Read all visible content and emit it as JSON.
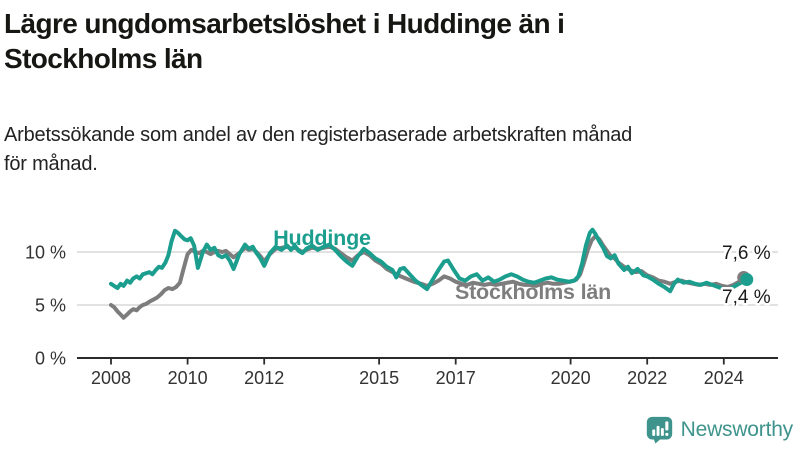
{
  "title_lines": [
    "Lägre ungdomsarbetslöshet i Huddinge än i",
    "Stockholms län"
  ],
  "subtitle_lines": [
    "Arbetssökande som andel av den registerbaserade arbetskraften månad",
    "för månad."
  ],
  "colors": {
    "huddinge": "#1b9e8e",
    "stockholm": "#7d7d7d",
    "grid": "#d9d9d9",
    "axis": "#2b2b2b",
    "text": "#161613",
    "logo": "#3e948c"
  },
  "logo": {
    "text": "Newsworthy",
    "icon": "newsworthy-bar-chart-bubble-icon"
  },
  "chart_data": {
    "type": "line",
    "title": "",
    "xlabel": "",
    "ylabel": "",
    "unit": "%",
    "grid": "horizontal",
    "legend_position": "inline-labels",
    "xlim": [
      2007.1,
      2025.4
    ],
    "ylim": [
      0,
      13.5
    ],
    "x_ticks": [
      2008,
      2010,
      2012,
      2015,
      2017,
      2020,
      2022,
      2024
    ],
    "y_ticks": [
      {
        "value": 0,
        "label": "0 %"
      },
      {
        "value": 5,
        "label": "5 %"
      },
      {
        "value": 10,
        "label": "10 %"
      }
    ],
    "series": [
      {
        "name": "Stockholms län",
        "color": "#7d7d7d",
        "end_label": "7,6 %",
        "end_value": 7.6,
        "points": [
          [
            2008.0,
            5.0
          ],
          [
            2008.08,
            4.8
          ],
          [
            2008.17,
            4.4
          ],
          [
            2008.25,
            4.1
          ],
          [
            2008.33,
            3.8
          ],
          [
            2008.42,
            4.1
          ],
          [
            2008.5,
            4.4
          ],
          [
            2008.58,
            4.6
          ],
          [
            2008.67,
            4.5
          ],
          [
            2008.75,
            4.8
          ],
          [
            2008.83,
            5.0
          ],
          [
            2008.92,
            5.1
          ],
          [
            2009.0,
            5.3
          ],
          [
            2009.1,
            5.5
          ],
          [
            2009.2,
            5.7
          ],
          [
            2009.3,
            6.0
          ],
          [
            2009.4,
            6.4
          ],
          [
            2009.5,
            6.6
          ],
          [
            2009.6,
            6.5
          ],
          [
            2009.7,
            6.7
          ],
          [
            2009.8,
            7.1
          ],
          [
            2009.9,
            8.5
          ],
          [
            2010.0,
            9.8
          ],
          [
            2010.1,
            10.2
          ],
          [
            2010.2,
            10.0
          ],
          [
            2010.3,
            9.9
          ],
          [
            2010.4,
            10.1
          ],
          [
            2010.5,
            10.0
          ],
          [
            2010.6,
            9.8
          ],
          [
            2010.7,
            10.0
          ],
          [
            2010.8,
            10.1
          ],
          [
            2010.9,
            10.0
          ],
          [
            2011.0,
            10.1
          ],
          [
            2011.1,
            9.8
          ],
          [
            2011.2,
            9.5
          ],
          [
            2011.35,
            9.9
          ],
          [
            2011.5,
            10.4
          ],
          [
            2011.6,
            10.2
          ],
          [
            2011.7,
            10.3
          ],
          [
            2011.8,
            10.0
          ],
          [
            2011.9,
            9.6
          ],
          [
            2012.0,
            9.1
          ],
          [
            2012.15,
            9.8
          ],
          [
            2012.3,
            10.3
          ],
          [
            2012.45,
            10.4
          ],
          [
            2012.6,
            10.5
          ],
          [
            2012.7,
            10.3
          ],
          [
            2012.8,
            10.4
          ],
          [
            2012.9,
            10.2
          ],
          [
            2013.0,
            10.0
          ],
          [
            2013.1,
            10.2
          ],
          [
            2013.25,
            10.4
          ],
          [
            2013.4,
            10.3
          ],
          [
            2013.55,
            10.4
          ],
          [
            2013.7,
            10.5
          ],
          [
            2013.85,
            10.3
          ],
          [
            2014.0,
            9.9
          ],
          [
            2014.15,
            9.5
          ],
          [
            2014.3,
            9.2
          ],
          [
            2014.45,
            9.7
          ],
          [
            2014.6,
            10.0
          ],
          [
            2014.75,
            9.7
          ],
          [
            2014.9,
            9.2
          ],
          [
            2015.05,
            8.9
          ],
          [
            2015.2,
            8.4
          ],
          [
            2015.35,
            8.1
          ],
          [
            2015.5,
            7.8
          ],
          [
            2015.7,
            7.5
          ],
          [
            2015.9,
            7.2
          ],
          [
            2016.1,
            7.0
          ],
          [
            2016.25,
            6.8
          ],
          [
            2016.4,
            7.0
          ],
          [
            2016.55,
            7.3
          ],
          [
            2016.7,
            7.7
          ],
          [
            2016.85,
            7.5
          ],
          [
            2017.0,
            7.2
          ],
          [
            2017.15,
            7.0
          ],
          [
            2017.3,
            6.9
          ],
          [
            2017.45,
            7.1
          ],
          [
            2017.6,
            7.0
          ],
          [
            2017.75,
            6.9
          ],
          [
            2017.9,
            7.0
          ],
          [
            2018.05,
            6.9
          ],
          [
            2018.2,
            7.0
          ],
          [
            2018.35,
            7.1
          ],
          [
            2018.5,
            7.2
          ],
          [
            2018.65,
            7.0
          ],
          [
            2018.8,
            6.9
          ],
          [
            2018.95,
            6.9
          ],
          [
            2019.1,
            6.8
          ],
          [
            2019.25,
            7.0
          ],
          [
            2019.4,
            7.1
          ],
          [
            2019.55,
            7.0
          ],
          [
            2019.7,
            7.0
          ],
          [
            2019.85,
            7.1
          ],
          [
            2020.0,
            7.2
          ],
          [
            2020.15,
            7.4
          ],
          [
            2020.25,
            7.9
          ],
          [
            2020.35,
            9.0
          ],
          [
            2020.45,
            10.2
          ],
          [
            2020.55,
            11.1
          ],
          [
            2020.65,
            11.5
          ],
          [
            2020.75,
            11.2
          ],
          [
            2020.85,
            10.6
          ],
          [
            2020.95,
            10.1
          ],
          [
            2021.05,
            9.6
          ],
          [
            2021.15,
            9.4
          ],
          [
            2021.25,
            9.0
          ],
          [
            2021.4,
            8.6
          ],
          [
            2021.55,
            8.3
          ],
          [
            2021.7,
            8.1
          ],
          [
            2021.85,
            8.2
          ],
          [
            2022.0,
            7.8
          ],
          [
            2022.15,
            7.6
          ],
          [
            2022.3,
            7.3
          ],
          [
            2022.45,
            7.2
          ],
          [
            2022.6,
            7.0
          ],
          [
            2022.75,
            7.2
          ],
          [
            2022.9,
            7.3
          ],
          [
            2023.05,
            7.1
          ],
          [
            2023.2,
            7.0
          ],
          [
            2023.35,
            6.9
          ],
          [
            2023.5,
            7.0
          ],
          [
            2023.65,
            6.9
          ],
          [
            2023.8,
            7.0
          ],
          [
            2023.95,
            6.8
          ],
          [
            2024.1,
            6.7
          ],
          [
            2024.25,
            6.9
          ],
          [
            2024.4,
            7.2
          ],
          [
            2024.52,
            7.6
          ]
        ]
      },
      {
        "name": "Huddinge",
        "color": "#1b9e8e",
        "end_label": "7,4 %",
        "end_value": 7.4,
        "points": [
          [
            2008.0,
            7.0
          ],
          [
            2008.08,
            6.8
          ],
          [
            2008.17,
            6.6
          ],
          [
            2008.25,
            7.0
          ],
          [
            2008.33,
            6.8
          ],
          [
            2008.42,
            7.3
          ],
          [
            2008.5,
            7.1
          ],
          [
            2008.58,
            7.5
          ],
          [
            2008.67,
            7.7
          ],
          [
            2008.75,
            7.5
          ],
          [
            2008.83,
            7.9
          ],
          [
            2008.92,
            8.0
          ],
          [
            2009.0,
            8.1
          ],
          [
            2009.08,
            7.9
          ],
          [
            2009.17,
            8.3
          ],
          [
            2009.25,
            8.6
          ],
          [
            2009.33,
            8.5
          ],
          [
            2009.42,
            9.0
          ],
          [
            2009.5,
            9.7
          ],
          [
            2009.58,
            11.0
          ],
          [
            2009.67,
            12.0
          ],
          [
            2009.75,
            11.8
          ],
          [
            2009.83,
            11.5
          ],
          [
            2009.92,
            11.2
          ],
          [
            2010.0,
            11.1
          ],
          [
            2010.08,
            11.3
          ],
          [
            2010.17,
            10.6
          ],
          [
            2010.27,
            8.5
          ],
          [
            2010.4,
            10.0
          ],
          [
            2010.5,
            10.7
          ],
          [
            2010.6,
            10.2
          ],
          [
            2010.7,
            10.4
          ],
          [
            2010.8,
            9.7
          ],
          [
            2010.9,
            9.5
          ],
          [
            2011.0,
            9.7
          ],
          [
            2011.1,
            9.2
          ],
          [
            2011.2,
            8.4
          ],
          [
            2011.35,
            9.8
          ],
          [
            2011.5,
            10.7
          ],
          [
            2011.6,
            10.3
          ],
          [
            2011.7,
            10.5
          ],
          [
            2011.8,
            9.9
          ],
          [
            2011.9,
            9.4
          ],
          [
            2012.0,
            8.7
          ],
          [
            2012.15,
            9.9
          ],
          [
            2012.3,
            10.5
          ],
          [
            2012.45,
            10.2
          ],
          [
            2012.6,
            10.6
          ],
          [
            2012.7,
            10.2
          ],
          [
            2012.8,
            10.6
          ],
          [
            2012.9,
            10.1
          ],
          [
            2013.0,
            9.9
          ],
          [
            2013.1,
            10.3
          ],
          [
            2013.25,
            10.6
          ],
          [
            2013.4,
            10.2
          ],
          [
            2013.55,
            10.5
          ],
          [
            2013.7,
            10.7
          ],
          [
            2013.85,
            10.2
          ],
          [
            2014.0,
            9.6
          ],
          [
            2014.15,
            9.1
          ],
          [
            2014.3,
            8.7
          ],
          [
            2014.45,
            9.6
          ],
          [
            2014.6,
            10.3
          ],
          [
            2014.75,
            9.9
          ],
          [
            2014.9,
            9.4
          ],
          [
            2015.05,
            9.1
          ],
          [
            2015.2,
            8.6
          ],
          [
            2015.35,
            8.3
          ],
          [
            2015.45,
            7.6
          ],
          [
            2015.55,
            8.4
          ],
          [
            2015.65,
            8.5
          ],
          [
            2015.8,
            7.9
          ],
          [
            2015.95,
            7.3
          ],
          [
            2016.1,
            6.9
          ],
          [
            2016.25,
            6.5
          ],
          [
            2016.4,
            7.4
          ],
          [
            2016.55,
            8.3
          ],
          [
            2016.7,
            9.1
          ],
          [
            2016.8,
            9.2
          ],
          [
            2016.95,
            8.3
          ],
          [
            2017.1,
            7.5
          ],
          [
            2017.25,
            7.3
          ],
          [
            2017.4,
            7.7
          ],
          [
            2017.55,
            7.9
          ],
          [
            2017.7,
            7.3
          ],
          [
            2017.85,
            7.6
          ],
          [
            2018.0,
            7.2
          ],
          [
            2018.15,
            7.4
          ],
          [
            2018.3,
            7.7
          ],
          [
            2018.45,
            7.9
          ],
          [
            2018.6,
            7.7
          ],
          [
            2018.75,
            7.4
          ],
          [
            2018.9,
            7.2
          ],
          [
            2019.05,
            7.1
          ],
          [
            2019.2,
            7.3
          ],
          [
            2019.35,
            7.5
          ],
          [
            2019.5,
            7.6
          ],
          [
            2019.65,
            7.4
          ],
          [
            2019.8,
            7.3
          ],
          [
            2019.95,
            7.2
          ],
          [
            2020.1,
            7.3
          ],
          [
            2020.2,
            7.7
          ],
          [
            2020.3,
            8.9
          ],
          [
            2020.4,
            10.6
          ],
          [
            2020.5,
            11.8
          ],
          [
            2020.57,
            12.1
          ],
          [
            2020.65,
            11.7
          ],
          [
            2020.75,
            11.0
          ],
          [
            2020.85,
            10.4
          ],
          [
            2020.95,
            9.6
          ],
          [
            2021.05,
            9.4
          ],
          [
            2021.15,
            9.7
          ],
          [
            2021.25,
            8.9
          ],
          [
            2021.4,
            8.3
          ],
          [
            2021.5,
            8.6
          ],
          [
            2021.6,
            8.0
          ],
          [
            2021.75,
            8.4
          ],
          [
            2021.9,
            7.8
          ],
          [
            2022.0,
            7.7
          ],
          [
            2022.15,
            7.4
          ],
          [
            2022.3,
            7.0
          ],
          [
            2022.45,
            6.7
          ],
          [
            2022.6,
            6.3
          ],
          [
            2022.7,
            7.0
          ],
          [
            2022.8,
            7.4
          ],
          [
            2022.95,
            7.1
          ],
          [
            2023.1,
            7.2
          ],
          [
            2023.25,
            7.0
          ],
          [
            2023.4,
            6.9
          ],
          [
            2023.55,
            7.1
          ],
          [
            2023.7,
            6.9
          ],
          [
            2023.85,
            6.7
          ],
          [
            2024.0,
            6.5
          ],
          [
            2024.1,
            6.4
          ],
          [
            2024.25,
            6.7
          ],
          [
            2024.4,
            7.0
          ],
          [
            2024.6,
            7.4
          ]
        ]
      }
    ]
  }
}
